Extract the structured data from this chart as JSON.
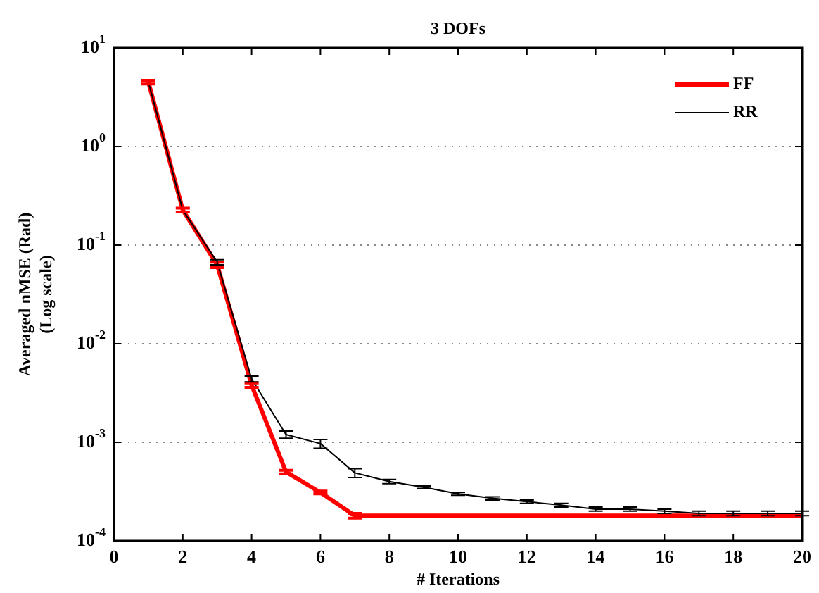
{
  "chart_data": {
    "type": "line",
    "title": "3 DOFs",
    "xlabel": "# Iterations",
    "ylabel": "Averaged nMSE (Rad)\n(Log scale)",
    "x": [
      1,
      2,
      3,
      4,
      5,
      6,
      7,
      8,
      9,
      10,
      11,
      12,
      13,
      14,
      15,
      16,
      17,
      18,
      19,
      20
    ],
    "series": [
      {
        "name": "FF",
        "color": "#ff0000",
        "values": [
          4.5,
          0.227,
          0.063,
          0.0038,
          0.0005,
          0.00031,
          0.00018,
          0.00018,
          0.00018,
          0.00018,
          0.00018,
          0.00018,
          0.00018,
          0.00018,
          0.00018,
          0.00018,
          0.00018,
          0.00018,
          0.00018,
          0.00018
        ],
        "errors": [
          0.2,
          0.01,
          0.004,
          0.0002,
          2e-05,
          1e-05,
          1e-05,
          null,
          null,
          null,
          null,
          null,
          null,
          null,
          null,
          null,
          null,
          null,
          null,
          null
        ]
      },
      {
        "name": "RR",
        "color": "#000000",
        "values": [
          4.5,
          0.227,
          0.067,
          0.0044,
          0.0012,
          0.00097,
          0.00049,
          0.0004,
          0.00035,
          0.0003,
          0.00027,
          0.00025,
          0.00023,
          0.00021,
          0.00021,
          0.0002,
          0.00019,
          0.00019,
          0.00019,
          0.00019
        ],
        "errors": [
          null,
          null,
          0.004,
          0.0003,
          0.0001,
          0.0001,
          5e-05,
          2e-05,
          1e-05,
          1e-05,
          1e-05,
          1e-05,
          1e-05,
          1e-05,
          1e-05,
          1e-05,
          1e-05,
          1e-05,
          1e-05,
          1e-05
        ]
      }
    ],
    "log": "y",
    "xlim": [
      0,
      20
    ],
    "xticks": [
      0,
      2,
      4,
      6,
      8,
      10,
      12,
      14,
      16,
      18,
      20
    ],
    "ylim": [
      0.0001,
      10
    ],
    "yticks": [
      {
        "value": 0.0001,
        "label": "10$^{-4}$"
      },
      {
        "value": 0.001,
        "label": "10$^{-3}$"
      },
      {
        "value": 0.01,
        "label": "10$^{-2}$"
      },
      {
        "value": 0.1,
        "label": "10$^{-1}$"
      },
      {
        "value": 1,
        "label": "10$^{0}$"
      },
      {
        "value": 10,
        "label": "10$^{1}$"
      }
    ],
    "grid": "y",
    "legend": "top right",
    "marker": "none",
    "line_style": "solid"
  }
}
